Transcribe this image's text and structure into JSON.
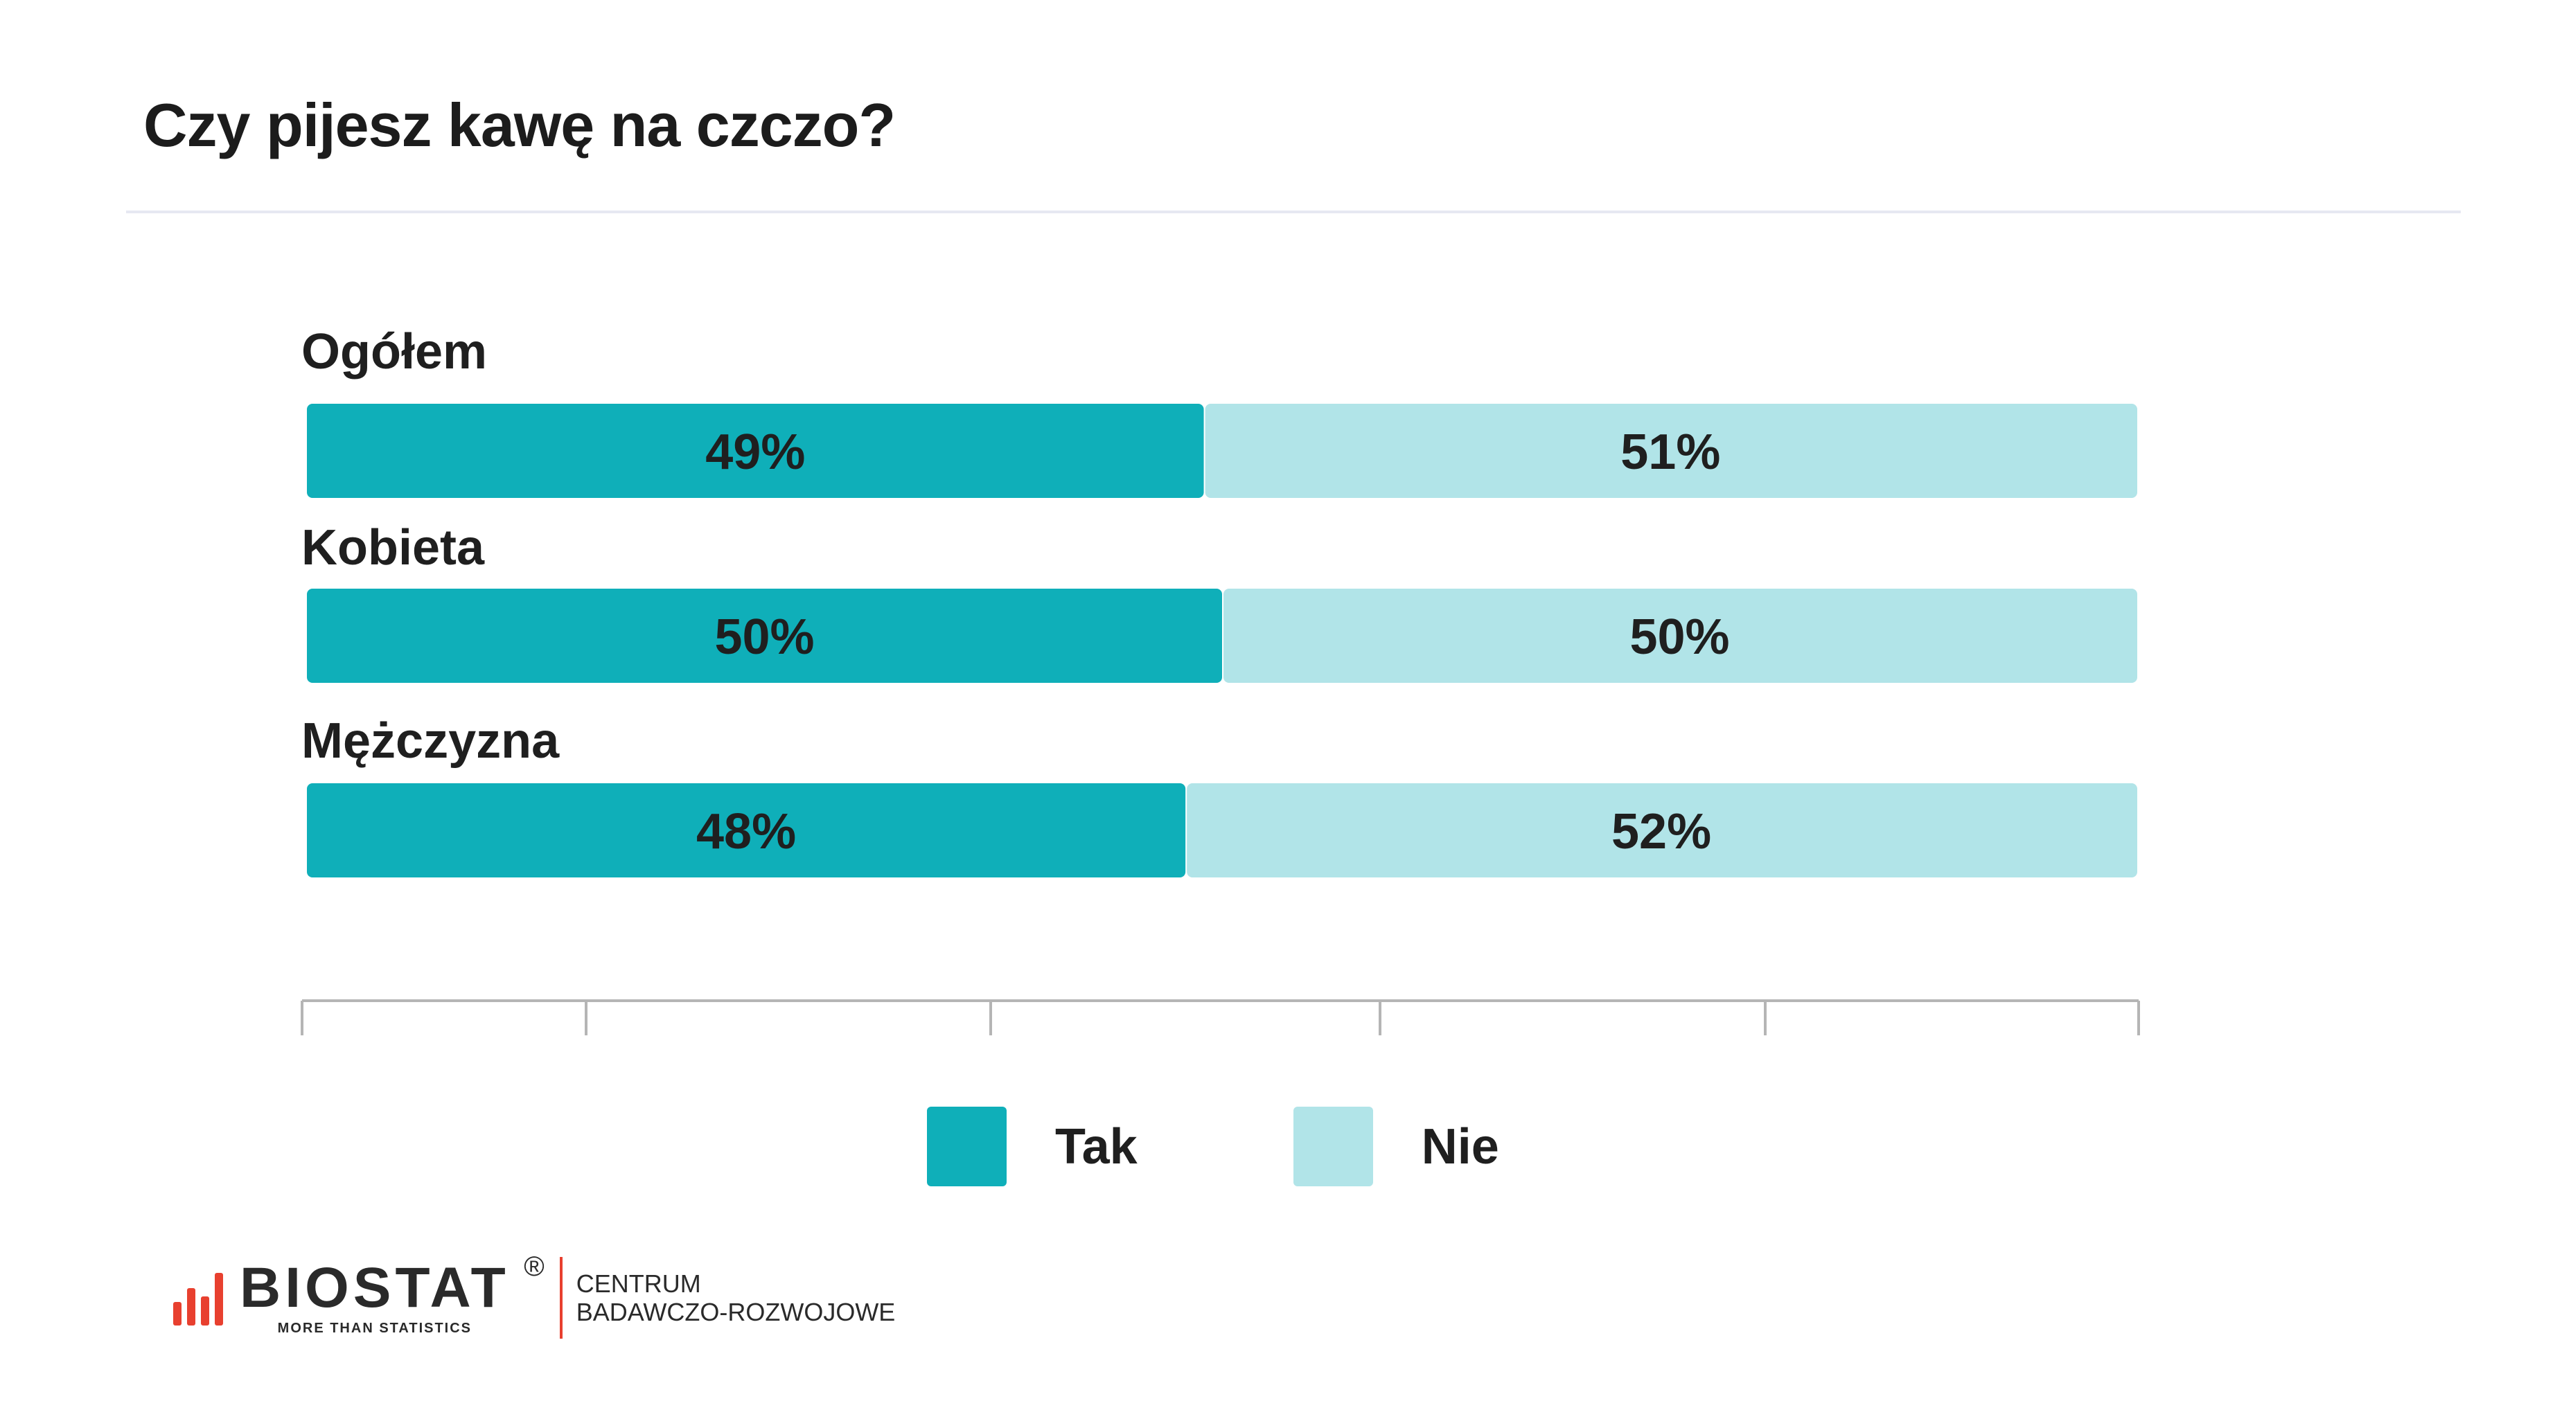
{
  "title": "Czy pijesz kawę na czczo?",
  "colors": {
    "tak": "#0fafb9",
    "nie": "#b1e4e8",
    "axis": "#b5b5b5",
    "brand_red": "#e8402f"
  },
  "chart_data": {
    "type": "bar",
    "orientation": "horizontal-stacked-100",
    "categories": [
      "Ogółem",
      "Kobieta",
      "Mężczyzna"
    ],
    "series": [
      {
        "name": "Tak",
        "values": [
          49,
          50,
          48
        ]
      },
      {
        "name": "Nie",
        "values": [
          51,
          50,
          52
        ]
      }
    ],
    "value_labels": [
      [
        "49%",
        "51%"
      ],
      [
        "50%",
        "50%"
      ],
      [
        "48%",
        "52%"
      ]
    ],
    "xlim": [
      0,
      100
    ],
    "grid": false,
    "legend_position": "bottom-center"
  },
  "legend": {
    "items": [
      "Tak",
      "Nie"
    ]
  },
  "footer": {
    "logo_name": "BIOSTAT",
    "logo_registered": "®",
    "logo_tagline": "MORE THAN STATISTICS",
    "centrum_line1": "CENTRUM",
    "centrum_line2": "BADAWCZO-ROZWOJOWE"
  }
}
